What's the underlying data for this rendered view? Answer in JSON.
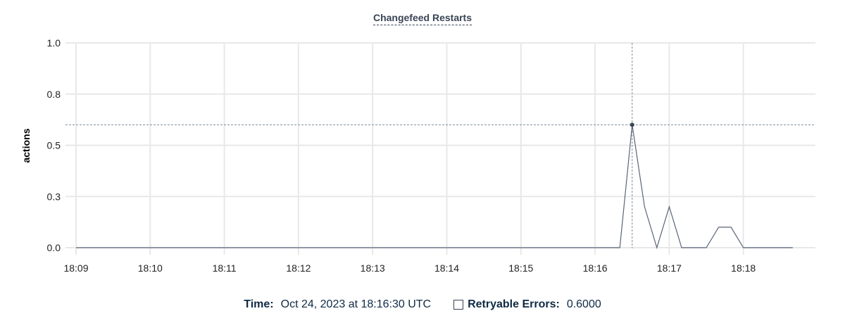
{
  "chart_data": {
    "type": "line",
    "title": "Changefeed Restarts",
    "xlabel": "",
    "ylabel": "actions",
    "ylim": [
      0,
      1.0
    ],
    "y_ticks": [
      0,
      0.25,
      0.5,
      0.75,
      1.0
    ],
    "y_tick_labels": [
      "0.0",
      "0.3",
      "0.5",
      "0.8",
      "1.0"
    ],
    "x_tick_labels": [
      "18:09",
      "18:10",
      "18:11",
      "18:12",
      "18:13",
      "18:14",
      "18:15",
      "18:16",
      "18:17",
      "18:18"
    ],
    "grid": true,
    "line_color": "#5a6577",
    "series": [
      {
        "points": [
          [
            "18:09:00",
            0
          ],
          [
            "18:09:10",
            0
          ],
          [
            "18:09:20",
            0
          ],
          [
            "18:09:30",
            0
          ],
          [
            "18:09:40",
            0
          ],
          [
            "18:09:50",
            0
          ],
          [
            "18:10:00",
            0
          ],
          [
            "18:10:10",
            0
          ],
          [
            "18:10:20",
            0
          ],
          [
            "18:10:30",
            0
          ],
          [
            "18:10:40",
            0
          ],
          [
            "18:10:50",
            0
          ],
          [
            "18:11:00",
            0
          ],
          [
            "18:11:10",
            0
          ],
          [
            "18:11:20",
            0
          ],
          [
            "18:11:30",
            0
          ],
          [
            "18:11:40",
            0
          ],
          [
            "18:11:50",
            0
          ],
          [
            "18:12:00",
            0
          ],
          [
            "18:12:10",
            0
          ],
          [
            "18:12:20",
            0
          ],
          [
            "18:12:30",
            0
          ],
          [
            "18:12:40",
            0
          ],
          [
            "18:12:50",
            0
          ],
          [
            "18:13:00",
            0
          ],
          [
            "18:13:10",
            0
          ],
          [
            "18:13:20",
            0
          ],
          [
            "18:13:30",
            0
          ],
          [
            "18:13:40",
            0
          ],
          [
            "18:13:50",
            0
          ],
          [
            "18:14:00",
            0
          ],
          [
            "18:14:10",
            0
          ],
          [
            "18:14:20",
            0
          ],
          [
            "18:14:30",
            0
          ],
          [
            "18:14:40",
            0
          ],
          [
            "18:14:50",
            0
          ],
          [
            "18:15:00",
            0
          ],
          [
            "18:15:10",
            0
          ],
          [
            "18:15:20",
            0
          ],
          [
            "18:15:30",
            0
          ],
          [
            "18:15:40",
            0
          ],
          [
            "18:15:50",
            0
          ],
          [
            "18:16:00",
            0
          ],
          [
            "18:16:10",
            0
          ],
          [
            "18:16:20",
            0
          ],
          [
            "18:16:30",
            0.6
          ],
          [
            "18:16:40",
            0.2
          ],
          [
            "18:16:50",
            0
          ],
          [
            "18:17:00",
            0.2
          ],
          [
            "18:17:10",
            0
          ],
          [
            "18:17:20",
            0
          ],
          [
            "18:17:30",
            0
          ],
          [
            "18:17:40",
            0.1
          ],
          [
            "18:17:50",
            0.1
          ],
          [
            "18:18:00",
            0
          ],
          [
            "18:18:10",
            0
          ],
          [
            "18:18:20",
            0
          ],
          [
            "18:18:30",
            0
          ],
          [
            "18:18:40",
            0
          ]
        ]
      }
    ],
    "hover": {
      "time": "18:16:30",
      "value": 0.6
    }
  },
  "legend": {
    "time_label": "Time:",
    "time_value": "Oct 24, 2023 at 18:16:30 UTC",
    "series_label": "Retryable Errors:",
    "series_value": "0.6000"
  }
}
